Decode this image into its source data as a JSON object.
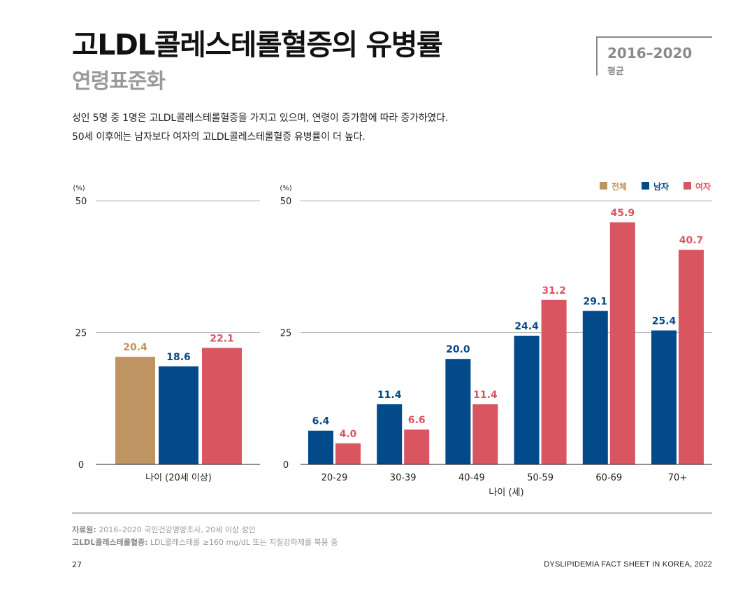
{
  "header": {
    "title": "고LDL콜레스테롤혈증의 유병률",
    "subtitle": "연령표준화",
    "period_year": "2016–2020",
    "period_label": "평균"
  },
  "description": {
    "line1": "성인 5명 중 1명은 고LDL콜레스테롤혈증을 가지고 있으며, 연령이 증가함에 따라 증가하였다.",
    "line2": "50세 이후에는 남자보다 여자의 고LDL콜레스테롤혈증 유병률이 더 높다."
  },
  "colors": {
    "total": "#BD9462",
    "male": "#034A8A",
    "female": "#D95660",
    "grid": "#b5b5b5"
  },
  "chart_data": [
    {
      "type": "bar",
      "categories": [
        "나이 (20세 이상)"
      ],
      "series": [
        {
          "name": "전체",
          "values": [
            20.4
          ]
        },
        {
          "name": "남자",
          "values": [
            18.6
          ]
        },
        {
          "name": "여자",
          "values": [
            22.1
          ]
        }
      ],
      "ylabel": "(%)",
      "ylim": [
        0,
        50
      ],
      "yticks": [
        0,
        25,
        50
      ],
      "grid": true
    },
    {
      "type": "bar",
      "categories": [
        "20-29",
        "30-39",
        "40-49",
        "50-59",
        "60-69",
        "70+"
      ],
      "series": [
        {
          "name": "남자",
          "values": [
            6.4,
            11.4,
            20.0,
            24.4,
            29.1,
            25.4
          ]
        },
        {
          "name": "여자",
          "values": [
            4.0,
            6.6,
            11.4,
            31.2,
            45.9,
            40.7
          ]
        }
      ],
      "xlabel": "나이 (세)",
      "ylabel": "(%)",
      "ylim": [
        0,
        50
      ],
      "yticks": [
        0,
        25,
        50
      ],
      "grid": true,
      "legend": [
        "전체",
        "남자",
        "여자"
      ],
      "legend_position": "top-right"
    }
  ],
  "notes": {
    "source_label": "자료원:",
    "source_text": " 2016–2020 국민건강영양조사, 20세 이상 성인",
    "def_label": "고LDL콜레스테롤혈증:",
    "def_text": " LDL콜레스테롤 ≥160 mg/dL 또는 지질강하제를 복용 중"
  },
  "footer": {
    "page_number": "27",
    "publication": "DYSLIPIDEMIA FACT SHEET IN KOREA, 2022"
  }
}
